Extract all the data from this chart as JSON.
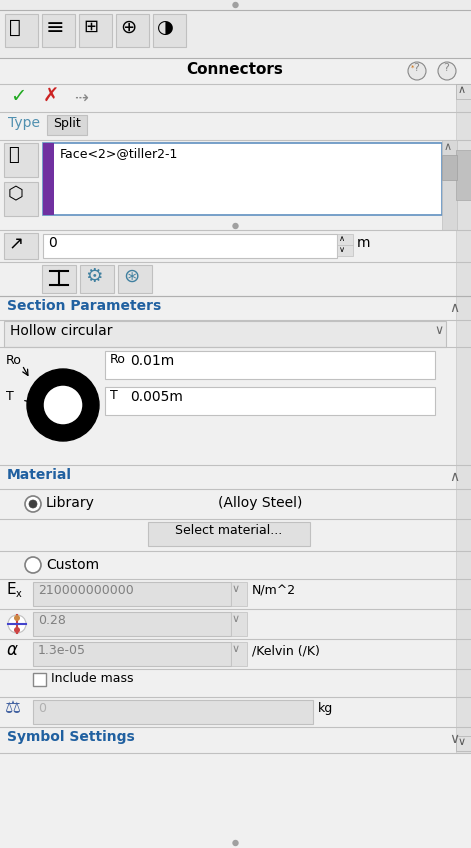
{
  "bg_color": "#f0f0f0",
  "white": "#ffffff",
  "light_gray": "#e8e8e8",
  "mid_gray": "#c8c8c8",
  "dark_gray": "#808080",
  "text_color": "#000000",
  "title": "Connectors",
  "type_label": "Type",
  "split_label": "Split",
  "face_label": "Face<2>@tiller2-1",
  "zero_label": "0",
  "m_label": "m",
  "section_params": "Section Parameters",
  "hollow_circular": "Hollow circular",
  "ro_label": "Ro",
  "ro_value": "0.01m",
  "t_label": "T",
  "t_value": "0.005m",
  "material_label": "Material",
  "library_label": "Library",
  "alloy_steel": "(Alloy Steel)",
  "select_material": "Select material...",
  "custom_label": "Custom",
  "ex_value": "210000000000",
  "ex_unit": "N/m^2",
  "nu_value": "0.28",
  "alpha_label": "α",
  "alpha_value": "1.3e-05",
  "alpha_unit": "/Kelvin (/K)",
  "include_mass": "Include mass",
  "mass_value": "0",
  "mass_unit": "kg",
  "symbol_settings": "Symbol Settings",
  "panel_bg": "#f0f0f0",
  "input_bg": "#ffffff",
  "disabled_bg": "#e0e0e0",
  "purple_bar": "#7030a0",
  "section_header_bg": "#f0f0f0",
  "button_bg": "#e0e0e0",
  "green_check": "#22aa22",
  "red_x": "#cc2222",
  "border_color": "#c0c0c0",
  "split_bg": "#d8d8d8",
  "scrollbar_bg": "#d0d0d0",
  "scrollbar_fg": "#b0b0b0",
  "toolbar_bg": "#ececec",
  "type_color": "#5090b0",
  "section_title_color": "#404040",
  "material_title_color": "#404040",
  "dropdown_bg": "#e8e8e8"
}
